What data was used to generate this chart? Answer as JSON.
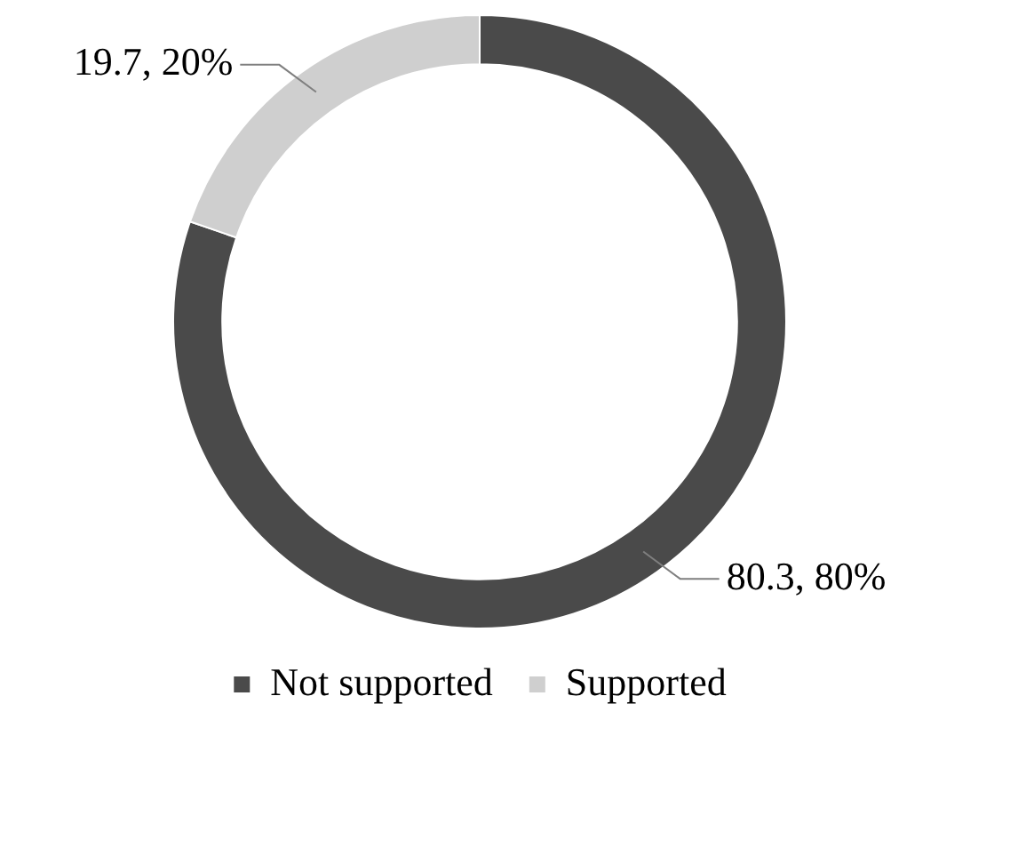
{
  "chart_data": {
    "type": "donut",
    "categories": [
      "Not supported",
      "Supported"
    ],
    "values": [
      80.3,
      19.7
    ],
    "colors": [
      "#4a4a4a",
      "#cfcfcf"
    ],
    "value_labels": [
      "80.3, 80%",
      "19.7, 20%"
    ],
    "legend": "bottom"
  }
}
